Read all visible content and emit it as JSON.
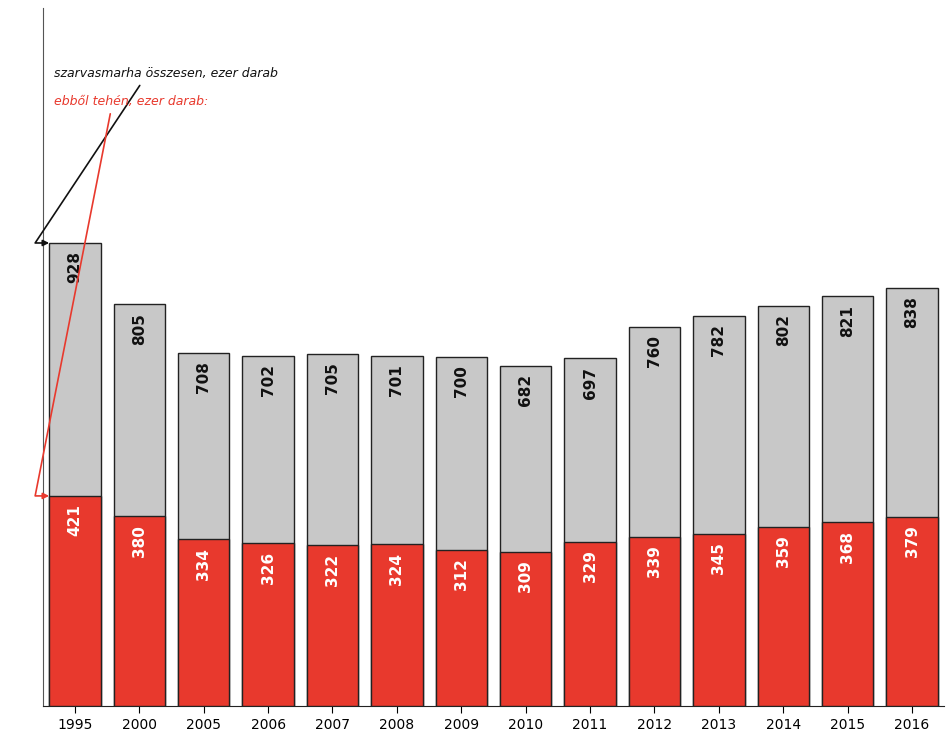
{
  "chart_data": {
    "type": "bar",
    "categories": [
      "1995",
      "2000",
      "2005",
      "2006",
      "2007",
      "2008",
      "2009",
      "2010",
      "2011",
      "2012",
      "2013",
      "2014",
      "2015",
      "2016"
    ],
    "series": [
      {
        "name": "szarvasmarha összesen, ezer darab",
        "color": "#c8c8c8",
        "values": [
          928,
          805,
          708,
          702,
          705,
          701,
          700,
          682,
          697,
          760,
          782,
          802,
          821,
          838
        ]
      },
      {
        "name": "ebből tehén, ezer darab:",
        "color": "#e8392d",
        "values": [
          421,
          380,
          334,
          326,
          322,
          324,
          312,
          309,
          329,
          339,
          345,
          359,
          368,
          379
        ]
      }
    ],
    "stacked": false,
    "data_labels": true,
    "tick_labels": "x",
    "grid": false,
    "ylim": [
      0,
      1400
    ]
  }
}
